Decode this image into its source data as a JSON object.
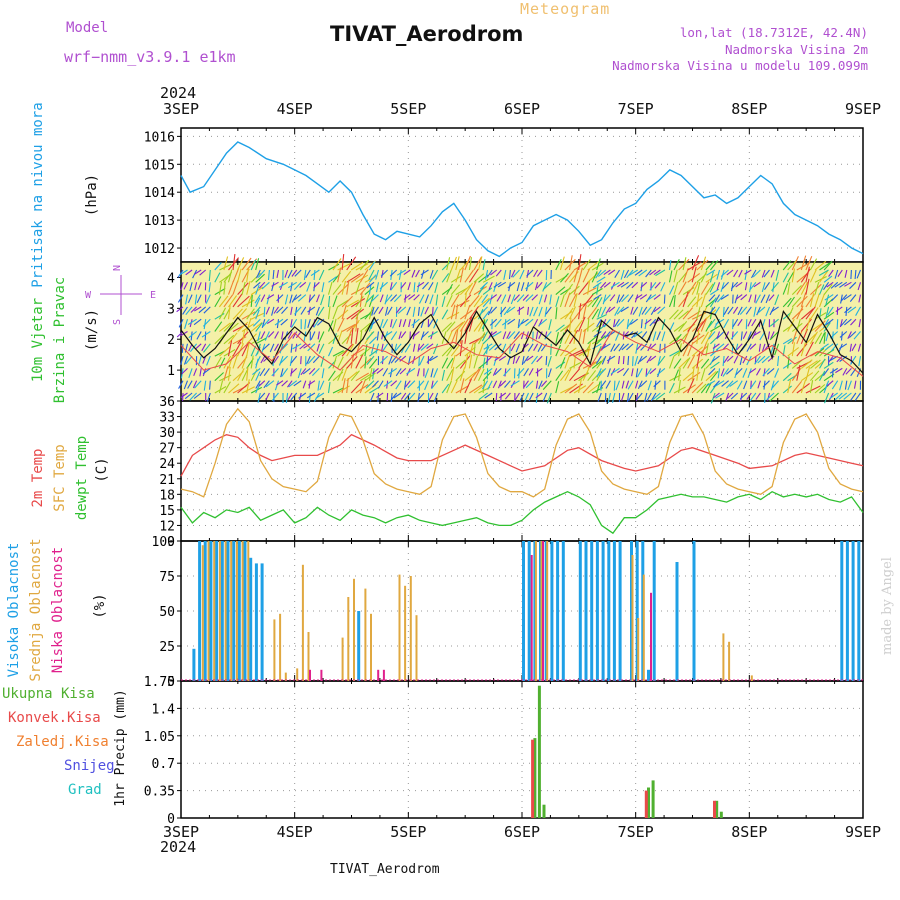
{
  "header": {
    "title": "TIVAT_Aerodrom",
    "subtitle": "Meteogram",
    "model_label": "Model",
    "model_name": "wrf−nmm_v3.9.1  e1km",
    "info_lonlat": "lon,lat (18.7312E, 42.4N)",
    "info_altitude": "Nadmorska Visina 2m",
    "info_model_altitude": "Nadmorska Visina u modelu 109.099m",
    "year_top": "2024",
    "year_bottom": "2024",
    "footer_station": "TIVAT_Aerodrom",
    "credit": "made by Angel"
  },
  "colors": {
    "pressure": "#1ea0e6",
    "t2m": "#e84a4a",
    "sfc": "#e0a840",
    "dewpoint": "#30c030",
    "high_cloud": "#1ea0e6",
    "mid_cloud": "#e0a840",
    "low_cloud": "#e0208c",
    "total_rain": "#50b030",
    "conv_rain": "#e84a4a",
    "freezing_rain": "#f08030",
    "snow": "#5050e0",
    "graupel": "#20c0c0",
    "wind_speed": "#111111",
    "gust": "#e84a4a",
    "axis_label_purple": "#b050d0"
  },
  "chart_data": [
    {
      "type": "line",
      "panel": "pressure",
      "ylabel_left": "Pritisak na nivou mora",
      "ylabel_unit": "(hPa)",
      "x_tick_labels": [
        "3SEP",
        "4SEP",
        "5SEP",
        "6SEP",
        "7SEP",
        "8SEP",
        "9SEP"
      ],
      "ylim": [
        1011.5,
        1016.3
      ],
      "y_ticks": [
        1012,
        1013,
        1014,
        1015,
        1016
      ],
      "grid": true,
      "series": [
        {
          "name": "Pritisak na nivou mora",
          "color_key": "pressure",
          "x": [
            0,
            0.08,
            0.2,
            0.3,
            0.4,
            0.5,
            0.6,
            0.75,
            0.9,
            1,
            1.1,
            1.2,
            1.3,
            1.4,
            1.5,
            1.6,
            1.7,
            1.8,
            1.9,
            2,
            2.1,
            2.2,
            2.3,
            2.4,
            2.5,
            2.6,
            2.7,
            2.8,
            2.9,
            3,
            3.1,
            3.2,
            3.3,
            3.4,
            3.5,
            3.6,
            3.7,
            3.8,
            3.9,
            4,
            4.1,
            4.2,
            4.3,
            4.4,
            4.5,
            4.6,
            4.7,
            4.8,
            4.9,
            5,
            5.1,
            5.2,
            5.3,
            5.4,
            5.5,
            5.6,
            5.7,
            5.8,
            5.9,
            6
          ],
          "y": [
            1014.6,
            1014.0,
            1014.2,
            1014.8,
            1015.4,
            1015.8,
            1015.6,
            1015.2,
            1015.0,
            1014.8,
            1014.6,
            1014.3,
            1014.0,
            1014.4,
            1014.0,
            1013.2,
            1012.5,
            1012.3,
            1012.6,
            1012.5,
            1012.4,
            1012.8,
            1013.3,
            1013.6,
            1013.0,
            1012.3,
            1011.9,
            1011.7,
            1012.0,
            1012.2,
            1012.8,
            1013.0,
            1013.2,
            1013.0,
            1012.6,
            1012.1,
            1012.3,
            1012.9,
            1013.4,
            1013.6,
            1014.1,
            1014.4,
            1014.8,
            1014.6,
            1014.2,
            1013.8,
            1013.9,
            1013.6,
            1013.8,
            1014.2,
            1014.6,
            1014.3,
            1013.6,
            1013.2,
            1013.0,
            1012.8,
            1012.5,
            1012.3,
            1012.0,
            1011.8
          ]
        }
      ]
    },
    {
      "type": "line",
      "panel": "wind",
      "ylabel_left": "10m Vjetar Brzina i Pravac",
      "ylabel_unit": "(m/s)",
      "compass": [
        "N",
        "S",
        "W",
        "E"
      ],
      "ylim": [
        0,
        4.5
      ],
      "y_ticks": [
        1,
        2,
        3,
        4
      ],
      "grid": false,
      "series": [
        {
          "name": "wind speed",
          "color_key": "wind_speed",
          "x": [
            0,
            0.1,
            0.2,
            0.3,
            0.4,
            0.5,
            0.6,
            0.7,
            0.8,
            0.9,
            1,
            1.1,
            1.2,
            1.3,
            1.4,
            1.5,
            1.6,
            1.7,
            1.8,
            1.9,
            2,
            2.1,
            2.2,
            2.3,
            2.4,
            2.5,
            2.6,
            2.7,
            2.8,
            2.9,
            3,
            3.1,
            3.2,
            3.3,
            3.4,
            3.5,
            3.6,
            3.7,
            3.8,
            3.9,
            4,
            4.1,
            4.2,
            4.3,
            4.4,
            4.5,
            4.6,
            4.7,
            4.8,
            4.9,
            5,
            5.1,
            5.2,
            5.3,
            5.4,
            5.5,
            5.6,
            5.7,
            5.8,
            5.9,
            6
          ],
          "y": [
            2.3,
            1.8,
            1.4,
            1.7,
            2.2,
            2.7,
            2.3,
            1.6,
            1.2,
            2.0,
            2.4,
            2.1,
            2.7,
            2.5,
            1.8,
            1.6,
            2.0,
            2.7,
            2.0,
            1.5,
            1.9,
            2.5,
            2.8,
            2.1,
            1.7,
            2.2,
            2.9,
            2.3,
            1.7,
            1.4,
            1.6,
            2.4,
            2.1,
            1.8,
            2.3,
            1.9,
            1.2,
            2.6,
            2.3,
            2.1,
            2.2,
            1.9,
            2.7,
            2.3,
            1.6,
            2.0,
            2.9,
            2.8,
            2.1,
            1.5,
            2.0,
            2.6,
            1.4,
            2.9,
            2.4,
            1.9,
            2.8,
            2.2,
            1.5,
            1.3,
            0.9
          ]
        },
        {
          "name": "gust",
          "color_key": "gust",
          "x": [
            0,
            0.2,
            0.4,
            0.6,
            0.8,
            1,
            1.2,
            1.4,
            1.6,
            1.8,
            2,
            2.2,
            2.4,
            2.6,
            2.8,
            3,
            3.2,
            3.4,
            3.6,
            3.8,
            4,
            4.2,
            4.4,
            4.6,
            4.8,
            5,
            5.2,
            5.4,
            5.6,
            5.8,
            6
          ],
          "y": [
            1.8,
            1.0,
            1.2,
            1.9,
            1.3,
            2.2,
            1.5,
            1.0,
            1.8,
            1.6,
            1.2,
            1.7,
            1.9,
            1.5,
            1.4,
            2.2,
            1.8,
            1.6,
            1.1,
            2.3,
            1.9,
            1.6,
            2.0,
            1.5,
            1.7,
            1.3,
            1.8,
            1.2,
            1.6,
            1.4,
            0.8
          ]
        }
      ]
    },
    {
      "type": "line",
      "panel": "temperature",
      "ylabel_series": [
        "2m Temp",
        "SFC Temp",
        "dewpt Temp"
      ],
      "ylabel_unit": "(C)",
      "ylim": [
        9,
        36
      ],
      "y_ticks": [
        9,
        12,
        15,
        18,
        21,
        24,
        27,
        30,
        33,
        36
      ],
      "grid": true,
      "series": [
        {
          "name": "2m Temp",
          "color_key": "t2m",
          "x": [
            0,
            0.1,
            0.2,
            0.3,
            0.4,
            0.5,
            0.6,
            0.7,
            0.8,
            0.9,
            1,
            1.2,
            1.4,
            1.5,
            1.7,
            1.9,
            2,
            2.2,
            2.4,
            2.5,
            2.7,
            2.9,
            3,
            3.2,
            3.4,
            3.5,
            3.7,
            3.9,
            4,
            4.2,
            4.4,
            4.5,
            4.7,
            4.9,
            5,
            5.2,
            5.4,
            5.5,
            5.7,
            5.9,
            6
          ],
          "y": [
            21.5,
            25.5,
            27.0,
            28.5,
            29.5,
            29.0,
            27.0,
            25.5,
            24.5,
            25.0,
            25.5,
            25.5,
            27.5,
            29.5,
            27.5,
            25.0,
            24.5,
            24.5,
            26.5,
            27.5,
            25.5,
            23.5,
            22.5,
            23.5,
            26.5,
            27.0,
            24.5,
            23.0,
            22.5,
            23.5,
            26.5,
            27.0,
            25.5,
            24.0,
            23.0,
            23.5,
            25.5,
            26.0,
            25.0,
            24.0,
            23.5
          ]
        },
        {
          "name": "SFC Temp",
          "color_key": "sfc",
          "x": [
            0,
            0.1,
            0.2,
            0.3,
            0.4,
            0.5,
            0.6,
            0.7,
            0.8,
            0.9,
            1,
            1.1,
            1.2,
            1.3,
            1.4,
            1.5,
            1.6,
            1.7,
            1.8,
            1.9,
            2,
            2.1,
            2.2,
            2.3,
            2.4,
            2.5,
            2.6,
            2.7,
            2.8,
            2.9,
            3,
            3.1,
            3.2,
            3.3,
            3.4,
            3.5,
            3.6,
            3.7,
            3.8,
            3.9,
            4,
            4.1,
            4.2,
            4.3,
            4.4,
            4.5,
            4.6,
            4.7,
            4.8,
            4.9,
            5,
            5.1,
            5.2,
            5.3,
            5.4,
            5.5,
            5.6,
            5.7,
            5.8,
            5.9,
            6
          ],
          "y": [
            19.0,
            18.5,
            17.5,
            24.0,
            31.5,
            34.5,
            32.0,
            24.5,
            21.0,
            19.5,
            19.0,
            18.5,
            20.5,
            29.0,
            33.5,
            33.0,
            28.5,
            22.0,
            20.0,
            19.0,
            18.5,
            18.0,
            19.5,
            28.5,
            33.0,
            33.5,
            29.0,
            22.0,
            19.5,
            18.5,
            18.5,
            17.5,
            19.0,
            27.5,
            32.5,
            33.5,
            30.0,
            22.5,
            20.0,
            19.0,
            18.5,
            18.0,
            19.5,
            28.0,
            33.0,
            33.5,
            29.5,
            22.5,
            20.0,
            19.0,
            18.5,
            18.0,
            19.5,
            28.0,
            32.5,
            33.5,
            30.0,
            23.0,
            20.0,
            19.0,
            18.5
          ]
        },
        {
          "name": "dewpt Temp",
          "color_key": "dewpoint",
          "x": [
            0,
            0.1,
            0.2,
            0.3,
            0.4,
            0.5,
            0.6,
            0.7,
            0.8,
            0.9,
            1,
            1.1,
            1.2,
            1.3,
            1.4,
            1.5,
            1.6,
            1.7,
            1.8,
            1.9,
            2,
            2.1,
            2.2,
            2.3,
            2.4,
            2.5,
            2.6,
            2.7,
            2.8,
            2.9,
            3,
            3.1,
            3.2,
            3.3,
            3.4,
            3.5,
            3.6,
            3.7,
            3.8,
            3.9,
            4,
            4.1,
            4.2,
            4.3,
            4.4,
            4.5,
            4.6,
            4.7,
            4.8,
            4.9,
            5,
            5.1,
            5.2,
            5.3,
            5.4,
            5.5,
            5.6,
            5.7,
            5.8,
            5.9,
            6
          ],
          "y": [
            15.5,
            12.5,
            14.5,
            13.5,
            15.0,
            14.5,
            15.5,
            13.0,
            14.0,
            15.0,
            12.5,
            13.5,
            15.5,
            14.0,
            13.0,
            15.0,
            14.0,
            13.5,
            12.5,
            13.5,
            14.0,
            13.0,
            12.5,
            12.0,
            12.5,
            13.0,
            13.5,
            12.5,
            12.0,
            12.0,
            13.0,
            15.0,
            16.5,
            17.5,
            18.5,
            17.5,
            16.0,
            12.0,
            10.5,
            13.5,
            13.5,
            15.0,
            17.0,
            17.5,
            18.0,
            17.5,
            17.5,
            17.0,
            16.5,
            17.5,
            18.0,
            17.0,
            18.5,
            17.5,
            18.0,
            17.5,
            18.0,
            17.0,
            16.5,
            17.5,
            14.5
          ]
        }
      ]
    },
    {
      "type": "bar",
      "panel": "clouds",
      "ylabel_series": [
        "Visoka Oblacnost",
        "Srednja Oblacnost",
        "Niska Oblacnost"
      ],
      "ylabel_unit": "(%)",
      "ylim": [
        0,
        100
      ],
      "y_ticks": [
        0,
        25,
        50,
        75,
        100
      ],
      "grid": true,
      "series": [
        {
          "name": "Visoka Oblacnost",
          "color_key": "high_cloud",
          "x": [
            0.1,
            0.15,
            0.2,
            0.25,
            0.3,
            0.35,
            0.4,
            0.45,
            0.5,
            0.55,
            0.6,
            0.65,
            0.7,
            3.0,
            3.05,
            3.1,
            3.15,
            3.2,
            3.25,
            3.3,
            3.35,
            3.5,
            3.55,
            3.6,
            3.65,
            3.7,
            3.75,
            3.8,
            3.85,
            3.95,
            4.0,
            4.05,
            4.1,
            4.15,
            4.35,
            4.5,
            5.8,
            5.85,
            5.9,
            5.95,
            1.55
          ],
          "y": [
            23,
            100,
            100,
            100,
            100,
            100,
            100,
            100,
            100,
            100,
            88,
            84,
            84,
            100,
            100,
            100,
            100,
            100,
            100,
            100,
            100,
            100,
            100,
            100,
            100,
            100,
            100,
            100,
            100,
            100,
            100,
            100,
            8,
            100,
            85,
            100,
            100,
            100,
            100,
            100,
            50
          ]
        },
        {
          "name": "Srednja Oblacnost",
          "color_key": "mid_cloud",
          "x": [
            0.17,
            0.22,
            0.27,
            0.32,
            0.37,
            0.42,
            0.47,
            0.52,
            0.57,
            0.8,
            0.85,
            0.9,
            1.0,
            1.05,
            1.1,
            1.4,
            1.45,
            1.5,
            1.6,
            1.65,
            1.9,
            1.95,
            2.0,
            2.05,
            3.1,
            3.15,
            3.2,
            3.95,
            4.0,
            4.05,
            4.75,
            4.8,
            5.0
          ],
          "y": [
            97,
            100,
            100,
            100,
            100,
            100,
            100,
            100,
            100,
            44,
            48,
            6,
            9,
            83,
            35,
            31,
            60,
            73,
            66,
            48,
            76,
            68,
            75,
            47,
            100,
            100,
            100,
            90,
            45,
            76,
            34,
            28,
            4
          ]
        },
        {
          "name": "Niska Oblacnost",
          "color_key": "low_cloud",
          "x": [
            1.1,
            1.2,
            1.7,
            1.75,
            3.05,
            3.15,
            4.1
          ],
          "y": [
            8,
            8,
            8,
            8,
            90,
            100,
            63
          ]
        }
      ]
    },
    {
      "type": "bar",
      "panel": "precipitation",
      "legend": [
        "Ukupna Kisa",
        "Konvek.Kisa",
        "Zaledj.Kisa",
        "Snijeg",
        "Grad"
      ],
      "ylabel_unit": "1hr Precip (mm)",
      "ylim": [
        0,
        1.75
      ],
      "y_ticks": [
        0,
        0.35,
        0.7,
        1.05,
        1.4,
        1.75
      ],
      "x_tick_labels": [
        "3SEP",
        "4SEP",
        "5SEP",
        "6SEP",
        "7SEP",
        "8SEP",
        "9SEP"
      ],
      "grid": true,
      "series": [
        {
          "name": "Ukupna Kisa",
          "color_key": "total_rain",
          "x": [
            3.1,
            3.14,
            3.18,
            4.1,
            4.14,
            4.7,
            4.74
          ],
          "y": [
            1.02,
            1.69,
            0.17,
            0.39,
            0.48,
            0.22,
            0.08
          ]
        },
        {
          "name": "Konvek.Kisa",
          "color_key": "conv_rain",
          "x": [
            3.08,
            4.08,
            4.68
          ],
          "y": [
            1.0,
            0.35,
            0.22
          ]
        }
      ]
    }
  ]
}
